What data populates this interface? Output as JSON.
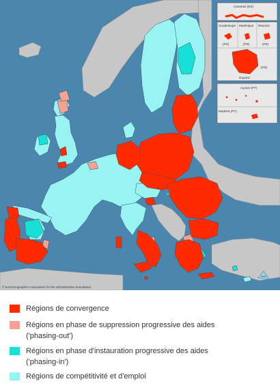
{
  "map": {
    "colors": {
      "sea": "#4a86ad",
      "land_other": "#c7c7c7",
      "convergence": "#ff2a00",
      "phasing_out": "#f4a293",
      "phasing_in": "#18e0d6",
      "competitiveness": "#98f3f3",
      "border": "#3b4f5e"
    },
    "copyright": "© EuroGeographics Association for the administrative boundaries",
    "insets": {
      "canarias": "Canarias (ES)",
      "guadeloupe": "Guadeloupe",
      "martinique": "Martinique",
      "reunion": "Réunion",
      "fr1": "(FR)",
      "fr2": "(FR)",
      "fr3": "(FR)",
      "guyane": "Guyane",
      "guyane_code": "(FR)",
      "acores": "Açores (PT)",
      "madeira": "Madeira (PT)"
    }
  },
  "legend": {
    "items": [
      {
        "label": "Régions de convergence",
        "color": "#ff2a00"
      },
      {
        "label": "Régions en phase de suppression progressive des aides",
        "label2": "('phasing-out')",
        "color": "#f4a293"
      },
      {
        "label": "Régions en phase d'instauration progressive des aides",
        "label2": "('phasing-in')",
        "color": "#18e0d6"
      },
      {
        "label": "Régions de compétitivité et d'emploi",
        "color": "#98f3f3"
      }
    ]
  }
}
